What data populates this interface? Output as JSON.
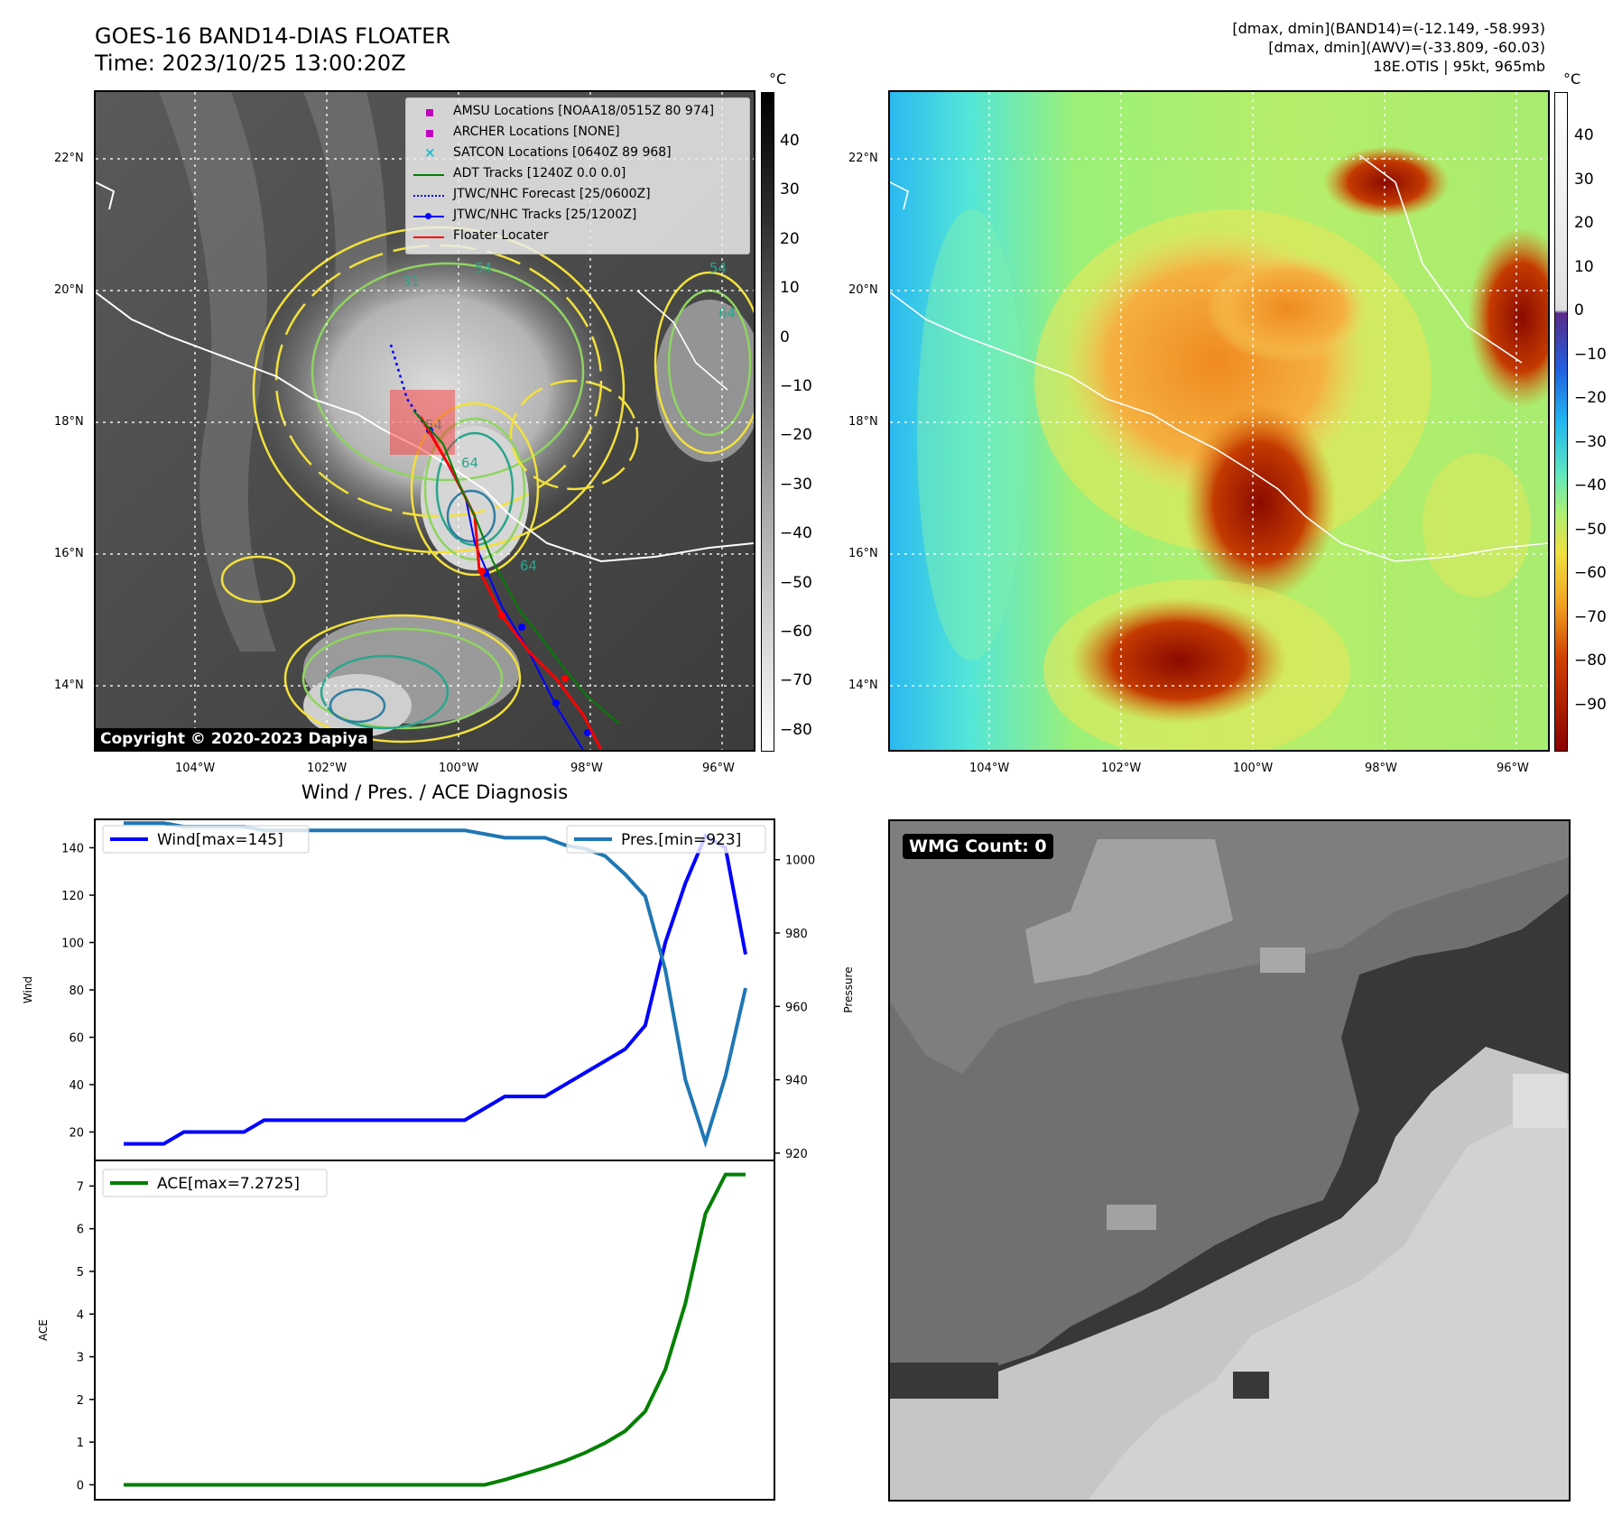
{
  "header": {
    "title_line1": "GOES-16 BAND14-DIAS FLOATER",
    "title_line2": "Time: 2023/10/25 13:00:20Z",
    "info_line1": "[dmax, dmin](BAND14)=(-12.149, -58.993)",
    "info_line2": "[dmax, dmin](AWV)=(-33.809, -60.03)",
    "info_line3": "18E.OTIS | 95kt, 965mb"
  },
  "map": {
    "lat_labels": [
      "22°N",
      "20°N",
      "18°N",
      "16°N",
      "14°N"
    ],
    "lon_labels": [
      "104°W",
      "102°W",
      "100°W",
      "98°W",
      "96°W"
    ],
    "copyright": "Copyright © 2020-2023 Dapiya",
    "contour_labels": [
      "31",
      "54",
      "64",
      "54",
      "64",
      "54",
      "64"
    ],
    "legend": [
      {
        "label": "AMSU Locations [NOAA18/0515Z 80 974]",
        "marker": "square",
        "color": "#bf00bf"
      },
      {
        "label": "ARCHER Locations [NONE]",
        "marker": "square",
        "color": "#bf00bf"
      },
      {
        "label": "SATCON Locations [0640Z 89 968]",
        "marker": "x",
        "color": "#17becf"
      },
      {
        "label": "ADT Tracks [1240Z 0.0 0.0]",
        "marker": "line",
        "color": "#008000"
      },
      {
        "label": "JTWC/NHC Forecast [25/0600Z]",
        "marker": "dotted",
        "color": "#0000ff"
      },
      {
        "label": "JTWC/NHC Tracks [25/1200Z]",
        "marker": "line-dot",
        "color": "#0000ff"
      },
      {
        "label": "Floater Locater",
        "marker": "line",
        "color": "#ff0000"
      }
    ]
  },
  "colorbar_gray": {
    "unit": "°C",
    "ticks": [
      "40",
      "30",
      "20",
      "10",
      "0",
      "−10",
      "−20",
      "−30",
      "−40",
      "−50",
      "−60",
      "−70",
      "−80"
    ]
  },
  "colorbar_color": {
    "unit": "°C",
    "ticks": [
      "40",
      "30",
      "20",
      "10",
      "0",
      "−10",
      "−20",
      "−30",
      "−40",
      "−50",
      "−60",
      "−70",
      "−80",
      "−90"
    ]
  },
  "wmg": {
    "badge": "WMG Count: 0"
  },
  "chart_data": [
    {
      "type": "line",
      "title": "Wind / Pres. / ACE Diagnosis",
      "ylabel": "Wind",
      "ylabel_right": "Pressure",
      "ylim": [
        8,
        152
      ],
      "ylim_right": [
        918,
        1011
      ],
      "yticks": [
        20,
        40,
        60,
        80,
        100,
        120,
        140
      ],
      "yticks_right": [
        920,
        940,
        960,
        980,
        1000
      ],
      "x": [
        0,
        1,
        2,
        3,
        4,
        5,
        6,
        7,
        8,
        9,
        10,
        11,
        12,
        13,
        14,
        15,
        16,
        17,
        18,
        19,
        20,
        21,
        22,
        23,
        24,
        25,
        26,
        27,
        28,
        29,
        30,
        31
      ],
      "series": [
        {
          "name": "Wind[max=145]",
          "axis": "left",
          "color": "#0000ff",
          "values": [
            15,
            15,
            15,
            20,
            20,
            20,
            20,
            25,
            25,
            25,
            25,
            25,
            25,
            25,
            25,
            25,
            25,
            25,
            30,
            35,
            35,
            35,
            40,
            45,
            50,
            55,
            65,
            100,
            125,
            145,
            140,
            95
          ]
        },
        {
          "name": "Pres.[min=923]",
          "axis": "right",
          "color": "#1f77b4",
          "values": [
            1010,
            1010,
            1010,
            1009,
            1009,
            1009,
            1009,
            1008,
            1008,
            1008,
            1008,
            1008,
            1008,
            1008,
            1008,
            1008,
            1008,
            1008,
            1007,
            1006,
            1006,
            1006,
            1004,
            1003,
            1001,
            996,
            990,
            970,
            940,
            923,
            941,
            965
          ]
        }
      ]
    },
    {
      "type": "line",
      "ylabel": "ACE",
      "ylim": [
        -0.35,
        7.6
      ],
      "yticks": [
        0,
        1,
        2,
        3,
        4,
        5,
        6,
        7
      ],
      "x": [
        0,
        1,
        2,
        3,
        4,
        5,
        6,
        7,
        8,
        9,
        10,
        11,
        12,
        13,
        14,
        15,
        16,
        17,
        18,
        19,
        20,
        21,
        22,
        23,
        24,
        25,
        26,
        27,
        28,
        29,
        30,
        31
      ],
      "series": [
        {
          "name": "ACE[max=7.2725]",
          "color": "#008000",
          "values": [
            0,
            0,
            0,
            0,
            0,
            0,
            0,
            0,
            0,
            0,
            0,
            0,
            0,
            0,
            0,
            0,
            0,
            0,
            0,
            0.12,
            0.26,
            0.4,
            0.56,
            0.75,
            0.98,
            1.26,
            1.72,
            2.7,
            4.25,
            6.35,
            7.27,
            7.27
          ]
        }
      ]
    }
  ]
}
